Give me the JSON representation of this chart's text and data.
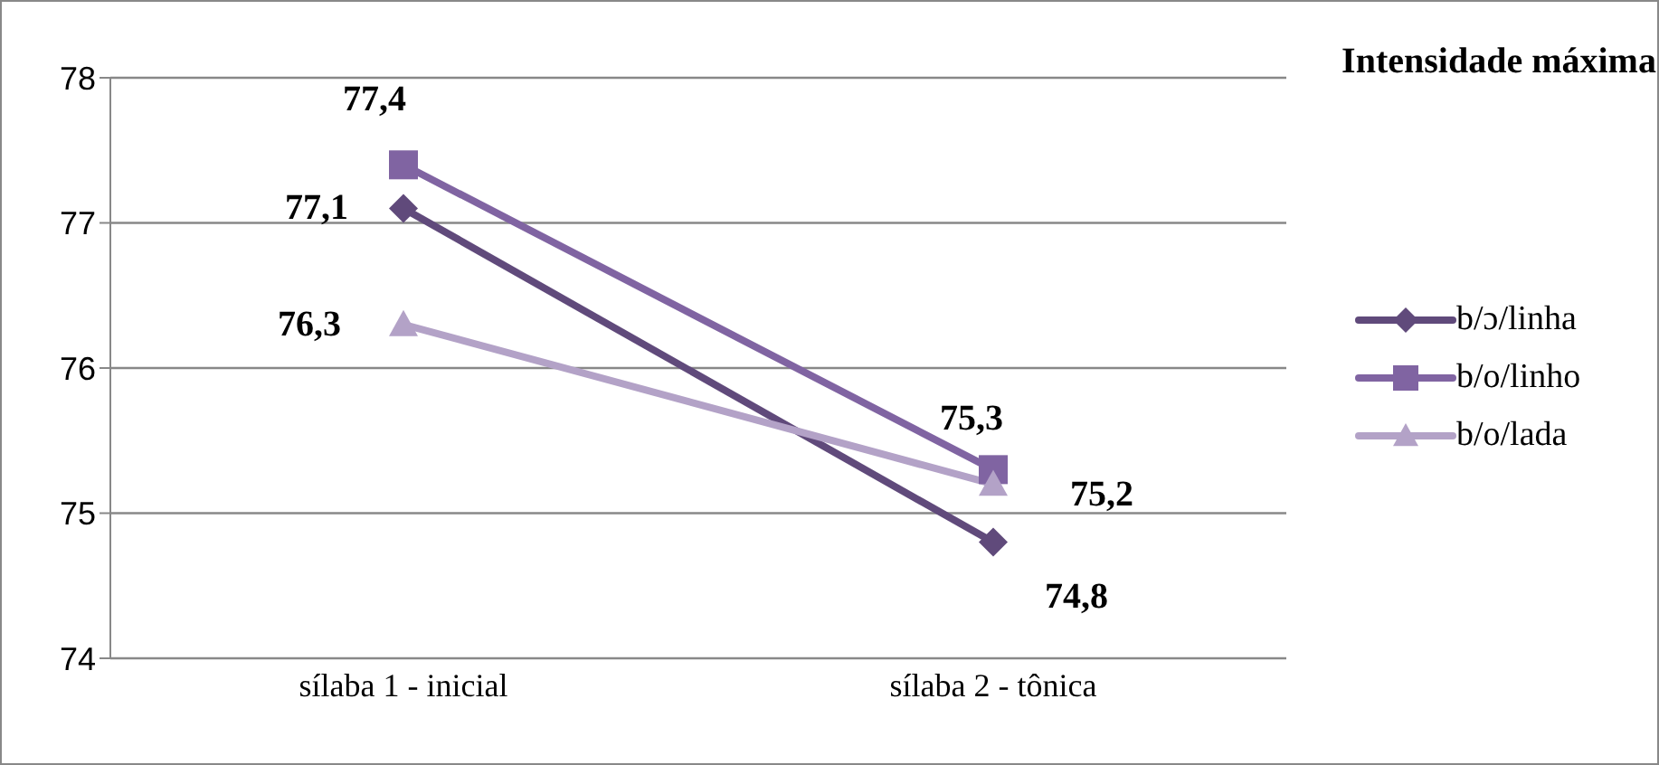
{
  "chart_data": {
    "type": "line",
    "title": "Intensidade máxima",
    "categories": [
      "sílaba 1 - inicial",
      "sílaba 2 - tônica"
    ],
    "series": [
      {
        "name": "b/ɔ/linha",
        "color": "#604a7b",
        "marker": "diamond",
        "values": [
          77.1,
          74.8
        ],
        "value_labels": [
          "77,1",
          "74,8"
        ]
      },
      {
        "name": "b/o/linho",
        "color": "#8064a2",
        "marker": "square",
        "values": [
          77.4,
          75.3
        ],
        "value_labels": [
          "77,4",
          "75,3"
        ]
      },
      {
        "name": "b/o/lada",
        "color": "#b3a2c7",
        "marker": "triangle",
        "values": [
          76.3,
          75.2
        ],
        "value_labels": [
          "76,3",
          "75,2"
        ]
      }
    ],
    "ylim": [
      74,
      78
    ],
    "yticks": [
      74,
      75,
      76,
      77,
      78
    ],
    "grid": "y",
    "legend": "right"
  }
}
